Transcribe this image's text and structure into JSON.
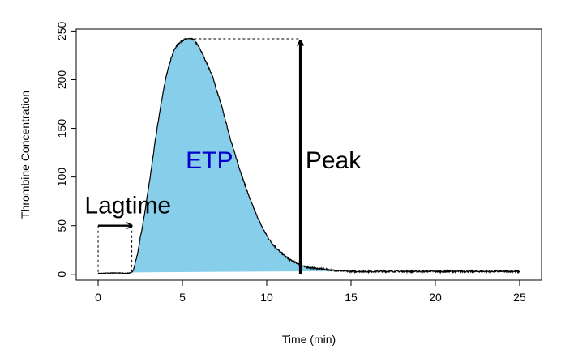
{
  "chart_data": {
    "type": "area",
    "title": "",
    "xlabel": "Time (min)",
    "ylabel": "Thrombine Concentration",
    "xlim": [
      -1.3,
      26.3
    ],
    "ylim": [
      -6,
      252
    ],
    "x_ticks": [
      0,
      5,
      10,
      15,
      20,
      25
    ],
    "y_ticks": [
      0,
      50,
      100,
      150,
      200,
      250
    ],
    "grid": false,
    "series": [
      {
        "x": [
          0,
          1,
          2,
          2.2,
          2.5,
          3,
          3.5,
          4,
          4.5,
          5,
          5.4,
          5.8,
          6.5,
          7,
          8,
          9,
          10,
          11,
          12,
          12.5,
          13,
          14,
          15,
          17,
          20,
          25
        ],
        "y": [
          1,
          1.5,
          2,
          12,
          38,
          90,
          150,
          200,
          230,
          240,
          242,
          238,
          215,
          190,
          130,
          78,
          40,
          20,
          10,
          7,
          6,
          4,
          3,
          3,
          3,
          3
        ],
        "fill": "#87ceeb"
      }
    ],
    "annotations": [
      {
        "text": "ETP",
        "x": 5.2,
        "y": 118,
        "color": "#0000cc"
      },
      {
        "text": "Peak",
        "x": 12.3,
        "y": 118,
        "color": "#000000"
      },
      {
        "text": "Lagtime",
        "x": -0.8,
        "y": 72,
        "color": "#000000"
      }
    ],
    "lagtime": {
      "start": 0,
      "end": 2,
      "y": 50
    },
    "peak": {
      "x": 12,
      "y": 242,
      "peak_time": 5.4
    }
  }
}
